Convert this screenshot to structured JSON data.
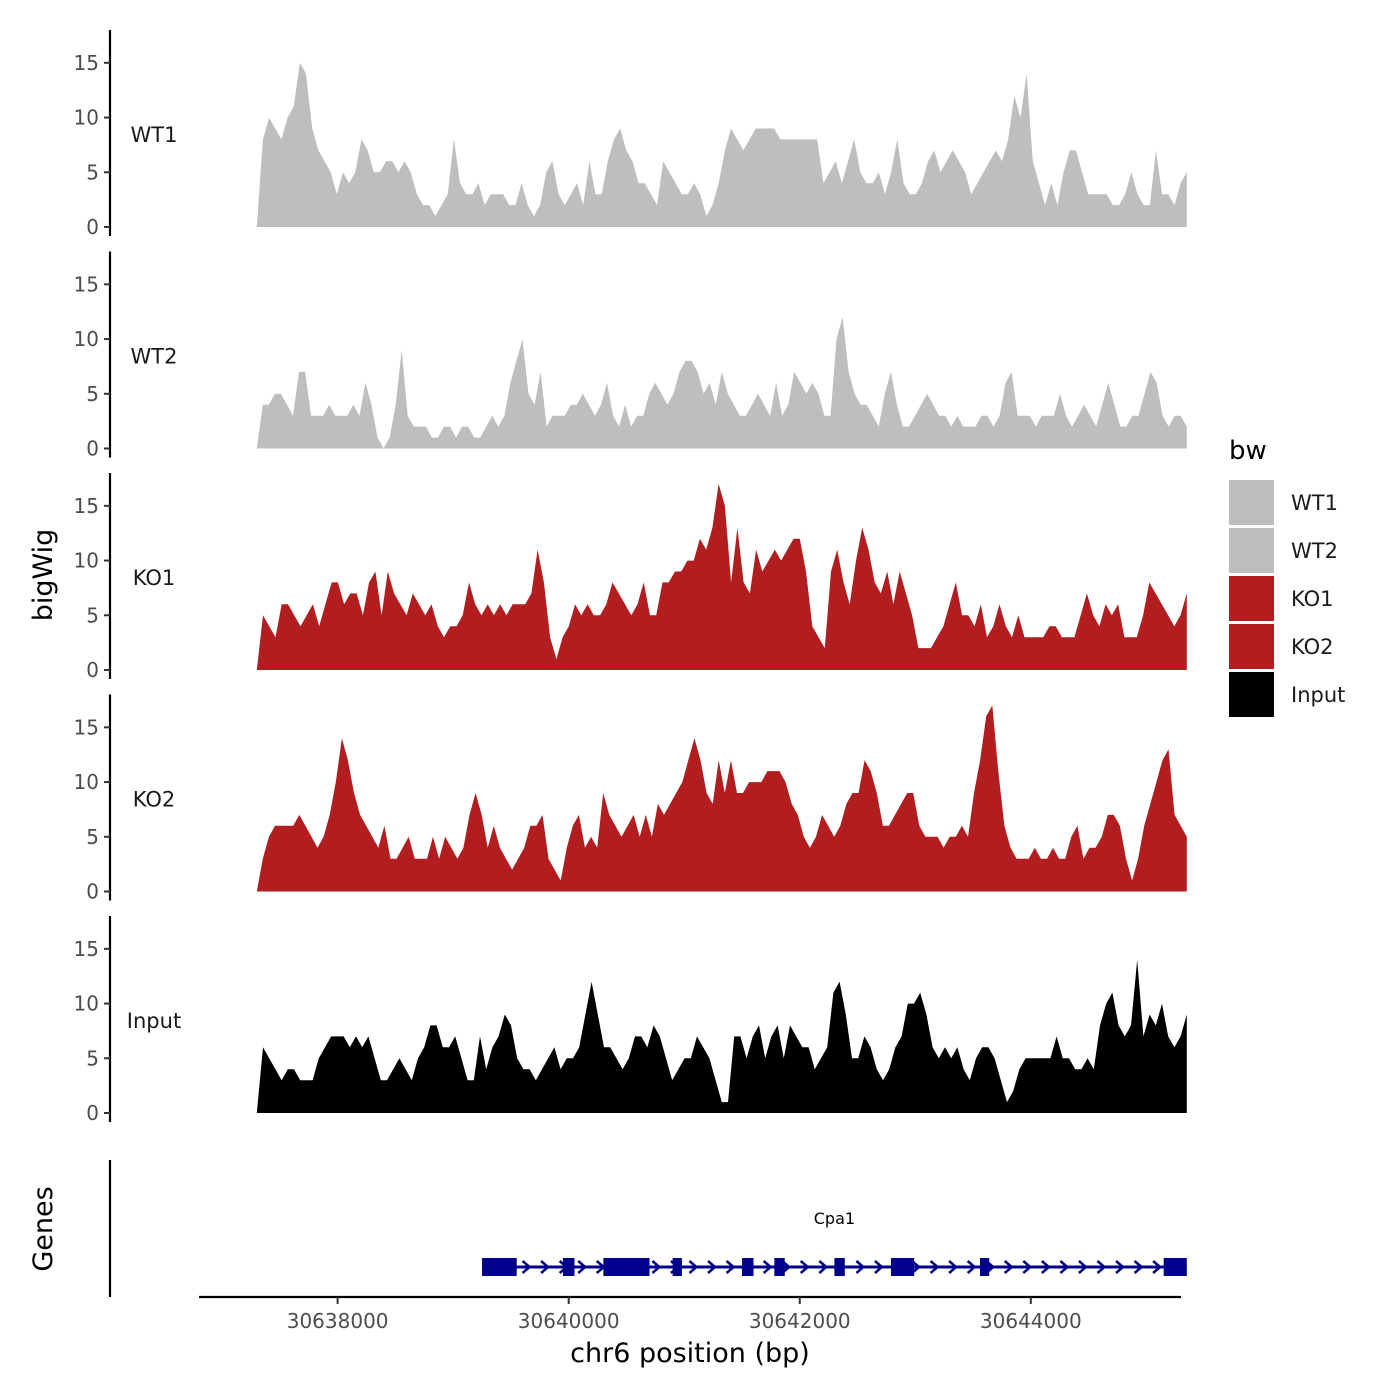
{
  "chart_data": {
    "type": "area",
    "title": "",
    "ylabel": "bigWig",
    "xlabel": "chr6 position (bp)",
    "genes_label": "Genes",
    "xlim": [
      30636800,
      30645300
    ],
    "x_start": 30637300,
    "x_end": 30645350,
    "ylim": [
      0,
      18
    ],
    "y_ticks": [
      0,
      5,
      10,
      15
    ],
    "x_ticks": [
      30638000,
      30640000,
      30642000,
      30644000
    ],
    "x_tick_labels": [
      "30638000",
      "30640000",
      "30642000",
      "30644000"
    ],
    "legend": {
      "title": "bw",
      "position": "right",
      "entries": [
        {
          "label": "WT1",
          "color": "#bebebe"
        },
        {
          "label": "WT2",
          "color": "#bebebe"
        },
        {
          "label": "KO1",
          "color": "#b21e20"
        },
        {
          "label": "KO2",
          "color": "#b21e20"
        },
        {
          "label": "Input",
          "color": "#000000"
        }
      ]
    },
    "series": [
      {
        "name": "WT1",
        "color": "#bebebe",
        "values": [
          0,
          8,
          10,
          9,
          8,
          10,
          11,
          15,
          14,
          9,
          7,
          6,
          5,
          3,
          5,
          4,
          5,
          8,
          7,
          5,
          5,
          6,
          6,
          5,
          6,
          5,
          3,
          2,
          2,
          1,
          2,
          3,
          8,
          4,
          3,
          3,
          4,
          2,
          3,
          3,
          3,
          2,
          2,
          4,
          2,
          1,
          2,
          5,
          6,
          3,
          2,
          3,
          4,
          2,
          6,
          3,
          3,
          6,
          8,
          9,
          7,
          6,
          4,
          4,
          3,
          2,
          6,
          5,
          4,
          3,
          3,
          4,
          3,
          1,
          2,
          4,
          7,
          9,
          8,
          7,
          8,
          9,
          9,
          9,
          9,
          8,
          8,
          8,
          8,
          8,
          8,
          8,
          4,
          5,
          6,
          4,
          6,
          8,
          5,
          4,
          4,
          5,
          3,
          5,
          8,
          4,
          3,
          3,
          4,
          6,
          7,
          5,
          6,
          7,
          6,
          5,
          3,
          4,
          5,
          6,
          7,
          6,
          8,
          12,
          10,
          14,
          6,
          4,
          2,
          4,
          2,
          5,
          7,
          7,
          5,
          3,
          3,
          3,
          3,
          2,
          2,
          3,
          5,
          3,
          2,
          2,
          7,
          3,
          3,
          2,
          4,
          5
        ]
      },
      {
        "name": "WT2",
        "color": "#bebebe",
        "values": [
          0,
          4,
          4,
          5,
          5,
          4,
          3,
          7,
          7,
          3,
          3,
          3,
          4,
          3,
          3,
          3,
          4,
          3,
          6,
          4,
          1,
          0,
          1,
          4,
          9,
          3,
          2,
          2,
          2,
          1,
          1,
          2,
          2,
          1,
          2,
          2,
          1,
          1,
          2,
          3,
          2,
          3,
          6,
          8,
          10,
          5,
          4,
          7,
          2,
          3,
          3,
          3,
          4,
          4,
          5,
          4,
          3,
          4,
          6,
          3,
          2,
          4,
          2,
          3,
          3,
          5,
          6,
          5,
          4,
          5,
          7,
          8,
          8,
          7,
          5,
          6,
          4,
          7,
          5,
          4,
          3,
          3,
          4,
          5,
          4,
          3,
          6,
          3,
          4,
          7,
          6,
          5,
          6,
          5,
          3,
          3,
          10,
          12,
          7,
          5,
          4,
          4,
          3,
          2,
          5,
          7,
          4,
          2,
          2,
          3,
          4,
          5,
          4,
          3,
          3,
          2,
          3,
          2,
          2,
          2,
          3,
          3,
          2,
          3,
          6,
          7,
          3,
          3,
          3,
          2,
          3,
          3,
          3,
          5,
          3,
          2,
          3,
          4,
          3,
          2,
          4,
          6,
          4,
          2,
          2,
          3,
          3,
          5,
          7,
          6,
          3,
          2,
          3,
          3,
          2
        ]
      },
      {
        "name": "KO1",
        "color": "#b21e20",
        "values": [
          0,
          5,
          4,
          3,
          6,
          6,
          5,
          4,
          5,
          6,
          4,
          6,
          8,
          8,
          6,
          7,
          7,
          5,
          8,
          9,
          5,
          9,
          7,
          6,
          5,
          7,
          6,
          5,
          6,
          4,
          3,
          4,
          4,
          5,
          8,
          6,
          5,
          6,
          5,
          6,
          5,
          6,
          6,
          6,
          7,
          11,
          8,
          3,
          1,
          3,
          4,
          6,
          5,
          6,
          5,
          5,
          6,
          8,
          7,
          6,
          5,
          6,
          8,
          5,
          5,
          8,
          8,
          9,
          9,
          10,
          10,
          12,
          11,
          13,
          17,
          15,
          8,
          13,
          8,
          7,
          11,
          9,
          10,
          11,
          10,
          11,
          12,
          12,
          9,
          4,
          3,
          2,
          9,
          11,
          8,
          6,
          10,
          13,
          11,
          8,
          7,
          9,
          6,
          9,
          7,
          5,
          2,
          2,
          2,
          3,
          4,
          6,
          8,
          5,
          5,
          4,
          6,
          3,
          4,
          6,
          4,
          3,
          5,
          3,
          3,
          3,
          3,
          4,
          4,
          3,
          3,
          3,
          5,
          7,
          5,
          4,
          6,
          5,
          6,
          3,
          3,
          3,
          5,
          8,
          7,
          6,
          5,
          4,
          5,
          7
        ]
      },
      {
        "name": "KO2",
        "color": "#b21e20",
        "values": [
          0,
          3,
          5,
          6,
          6,
          6,
          6,
          7,
          6,
          5,
          4,
          5,
          7,
          10,
          14,
          12,
          9,
          7,
          6,
          5,
          4,
          6,
          3,
          3,
          4,
          5,
          3,
          3,
          3,
          5,
          3,
          5,
          4,
          3,
          4,
          7,
          9,
          7,
          4,
          6,
          4,
          3,
          2,
          3,
          4,
          6,
          6,
          7,
          3,
          2,
          1,
          4,
          6,
          7,
          4,
          5,
          4,
          9,
          7,
          6,
          5,
          6,
          7,
          5,
          7,
          5,
          8,
          7,
          8,
          9,
          10,
          12,
          14,
          12,
          9,
          8,
          12,
          9,
          12,
          9,
          9,
          10,
          10,
          10,
          11,
          11,
          11,
          10,
          8,
          7,
          5,
          4,
          5,
          7,
          6,
          5,
          6,
          8,
          9,
          9,
          12,
          11,
          9,
          6,
          6,
          7,
          8,
          9,
          9,
          6,
          5,
          5,
          5,
          4,
          5,
          5,
          6,
          5,
          9,
          12,
          16,
          17,
          11,
          6,
          4,
          3,
          3,
          3,
          4,
          3,
          3,
          4,
          3,
          3,
          5,
          6,
          3,
          4,
          4,
          5,
          7,
          7,
          6,
          3,
          1,
          3,
          6,
          8,
          10,
          12,
          13,
          7,
          6,
          5
        ]
      },
      {
        "name": "Input",
        "color": "#000000",
        "values": [
          0,
          6,
          5,
          4,
          3,
          4,
          4,
          3,
          3,
          3,
          5,
          6,
          7,
          7,
          7,
          6,
          7,
          6,
          7,
          5,
          3,
          3,
          4,
          5,
          4,
          3,
          5,
          6,
          8,
          8,
          6,
          6,
          7,
          5,
          3,
          3,
          7,
          4,
          6,
          7,
          9,
          8,
          5,
          4,
          4,
          3,
          4,
          5,
          6,
          4,
          5,
          5,
          6,
          9,
          12,
          9,
          6,
          6,
          5,
          4,
          5,
          7,
          7,
          6,
          8,
          7,
          5,
          3,
          4,
          5,
          5,
          7,
          6,
          5,
          3,
          1,
          1,
          7,
          7,
          5,
          7,
          8,
          5,
          7,
          8,
          5,
          8,
          7,
          6,
          6,
          4,
          5,
          6,
          11,
          12,
          9,
          5,
          5,
          7,
          6,
          4,
          3,
          4,
          6,
          7,
          10,
          10,
          11,
          9,
          6,
          5,
          6,
          5,
          6,
          4,
          3,
          5,
          6,
          6,
          5,
          3,
          1,
          2,
          4,
          5,
          5,
          5,
          5,
          5,
          7,
          5,
          5,
          4,
          4,
          5,
          4,
          8,
          10,
          11,
          8,
          7,
          8,
          14,
          7,
          9,
          8,
          10,
          7,
          6,
          7,
          9
        ]
      }
    ],
    "gene": {
      "name": "Cpa1",
      "color": "#00008b",
      "strand": "+",
      "start": 30639250,
      "end": 30645350,
      "exons": [
        [
          30639250,
          30639550
        ],
        [
          30639950,
          30640050
        ],
        [
          30640300,
          30640700
        ],
        [
          30640900,
          30640980
        ],
        [
          30641500,
          30641600
        ],
        [
          30641780,
          30641870
        ],
        [
          30642300,
          30642390
        ],
        [
          30642790,
          30642990
        ],
        [
          30643560,
          30643640
        ],
        [
          30645150,
          30645350
        ]
      ]
    }
  }
}
